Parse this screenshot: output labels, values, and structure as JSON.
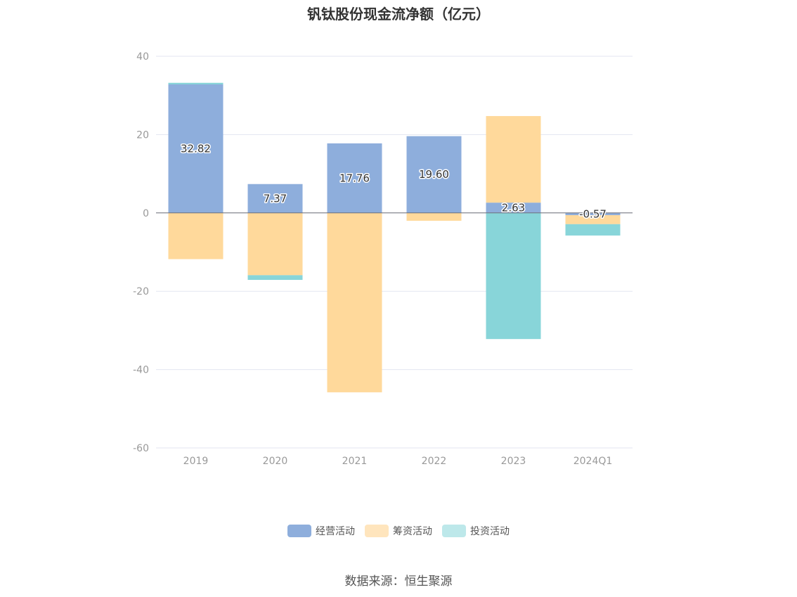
{
  "chart_data": {
    "type": "bar",
    "stacked": true,
    "title": "钒钛股份现金流净额（亿元）",
    "categories": [
      "2019",
      "2020",
      "2021",
      "2022",
      "2023",
      "2024Q1"
    ],
    "series": [
      {
        "name": "经营活动",
        "color": "#8eaedc",
        "values": [
          32.82,
          7.37,
          17.76,
          19.6,
          2.63,
          -0.57
        ]
      },
      {
        "name": "筹资活动",
        "color": "#ffd99b",
        "values": [
          -11.8,
          -15.9,
          -45.8,
          -2.0,
          22.1,
          -2.3
        ]
      },
      {
        "name": "投资活动",
        "color": "#88d5d9",
        "values": [
          0.4,
          -1.2,
          0,
          0,
          -32.2,
          -2.9
        ]
      }
    ],
    "data_labels": [
      "32.82",
      "7.37",
      "17.76",
      "19.60",
      "2.63",
      "-0.57"
    ],
    "ylim": [
      -60,
      40
    ],
    "yticks": [
      40,
      20,
      0,
      -20,
      -40,
      -60
    ],
    "legend_position": "bottom"
  },
  "legend": {
    "items": [
      {
        "label": "经营活动",
        "color": "#8eaedc"
      },
      {
        "label": "筹资活动",
        "color": "#ffe5bd"
      },
      {
        "label": "投资活动",
        "color": "#bde8ea"
      }
    ]
  },
  "source": "数据来源：恒生聚源"
}
